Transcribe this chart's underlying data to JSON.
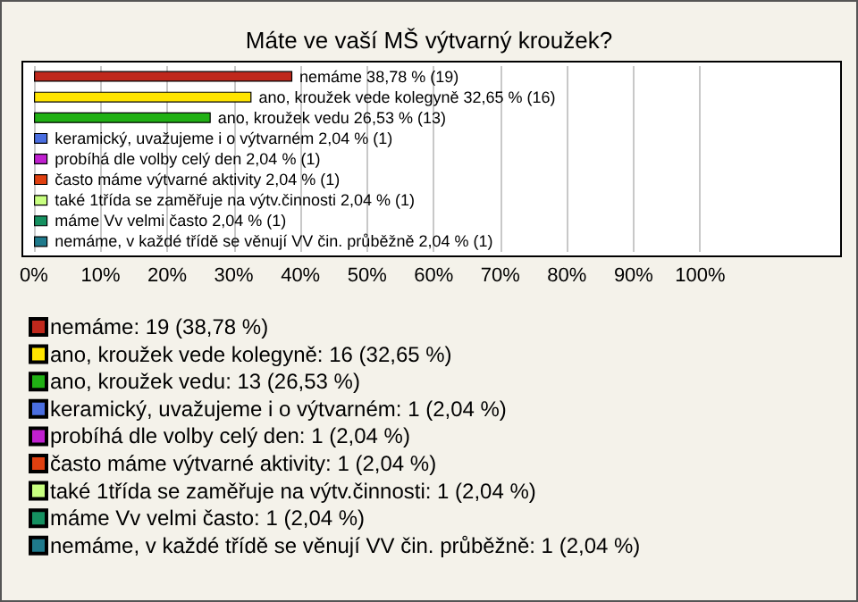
{
  "chart_data": {
    "type": "bar",
    "orientation": "horizontal",
    "stacked": true,
    "title": "Máte ve vaší MŠ výtvarný kroužek?",
    "categories": [
      null,
      null,
      null,
      null,
      null,
      null,
      null,
      null,
      null
    ],
    "xlim": [
      0,
      121
    ],
    "xticks": [
      {
        "value": 0,
        "label": "0%"
      },
      {
        "value": 10,
        "label": "10%"
      },
      {
        "value": 20,
        "label": "20%"
      },
      {
        "value": 30,
        "label": "30%"
      },
      {
        "value": 40,
        "label": "40%"
      },
      {
        "value": 50,
        "label": "50%"
      },
      {
        "value": 60,
        "label": "60%"
      },
      {
        "value": 70,
        "label": "70%"
      },
      {
        "value": 80,
        "label": "80%"
      },
      {
        "value": 90,
        "label": "90%"
      },
      {
        "value": 100,
        "label": "100%"
      }
    ],
    "grid": "x",
    "legend": "bottom",
    "tick_labels": "x",
    "series": [
      {
        "name": "nemáme: 19 (38,78 %)",
        "color": "#c0281c",
        "values": [
          38.78,
          null,
          null,
          null,
          null,
          null,
          null,
          null,
          null
        ],
        "value_labels": [
          "nemáme 38,78 % (19)",
          null,
          null,
          null,
          null,
          null,
          null,
          null,
          null
        ]
      },
      {
        "name": "ano, kroužek vede kolegyně: 16 (32,65 %)",
        "color": "#ffe400",
        "values": [
          null,
          32.65,
          null,
          null,
          null,
          null,
          null,
          null,
          null
        ],
        "value_labels": [
          null,
          "ano, kroužek vede kolegyně 32,65 % (16)",
          null,
          null,
          null,
          null,
          null,
          null,
          null
        ]
      },
      {
        "name": "ano, kroužek vedu: 13 (26,53 %)",
        "color": "#20b014",
        "values": [
          null,
          null,
          26.53,
          null,
          null,
          null,
          null,
          null,
          null
        ],
        "value_labels": [
          null,
          null,
          "ano, kroužek vedu 26,53 % (13)",
          null,
          null,
          null,
          null,
          null,
          null
        ]
      },
      {
        "name": "keramický, uvažujeme i o výtvarném: 1 (2,04 %)",
        "color": "#4a6ee0",
        "values": [
          null,
          null,
          null,
          2.04,
          null,
          null,
          null,
          null,
          null
        ],
        "value_labels": [
          null,
          null,
          null,
          "keramický, uvažujeme i o výtvarném 2,04 % (1)",
          null,
          null,
          null,
          null,
          null
        ]
      },
      {
        "name": "probíhá dle volby celý den: 1 (2,04 %)",
        "color": "#c020d0",
        "values": [
          null,
          null,
          null,
          null,
          2.04,
          null,
          null,
          null,
          null
        ],
        "value_labels": [
          null,
          null,
          null,
          null,
          "probíhá dle volby celý den 2,04 % (1)",
          null,
          null,
          null,
          null
        ]
      },
      {
        "name": "často máme výtvarné aktivity: 1 (2,04 %)",
        "color": "#e04010",
        "values": [
          null,
          null,
          null,
          null,
          null,
          2.04,
          null,
          null,
          null
        ],
        "value_labels": [
          null,
          null,
          null,
          null,
          null,
          "často máme výtvarné aktivity 2,04 % (1)",
          null,
          null,
          null
        ]
      },
      {
        "name": "také 1třída se zaměřuje na výtv.činnosti: 1 (2,04 %)",
        "color": "#c8ff80",
        "values": [
          null,
          null,
          null,
          null,
          null,
          null,
          2.04,
          null,
          null
        ],
        "value_labels": [
          null,
          null,
          null,
          null,
          null,
          null,
          "také 1třída se zaměřuje na výtv.činnosti 2,04 % (1)",
          null,
          null
        ]
      },
      {
        "name": "máme Vv velmi často: 1 (2,04 %)",
        "color": "#159060",
        "values": [
          null,
          null,
          null,
          null,
          null,
          null,
          null,
          2.04,
          null
        ],
        "value_labels": [
          null,
          null,
          null,
          null,
          null,
          null,
          null,
          "máme Vv velmi často 2,04 % (1)",
          null
        ]
      },
      {
        "name": "nemáme, v každé třídě se věnují VV čin. průběžně: 1 (2,04 %)",
        "color": "#1f7a8c",
        "values": [
          null,
          null,
          null,
          null,
          null,
          null,
          null,
          null,
          2.04
        ],
        "value_labels": [
          null,
          null,
          null,
          null,
          null,
          null,
          null,
          null,
          "nemáme, v každé třídě se věnují VV čin. průběžně 2,04 % (1)"
        ]
      }
    ]
  }
}
